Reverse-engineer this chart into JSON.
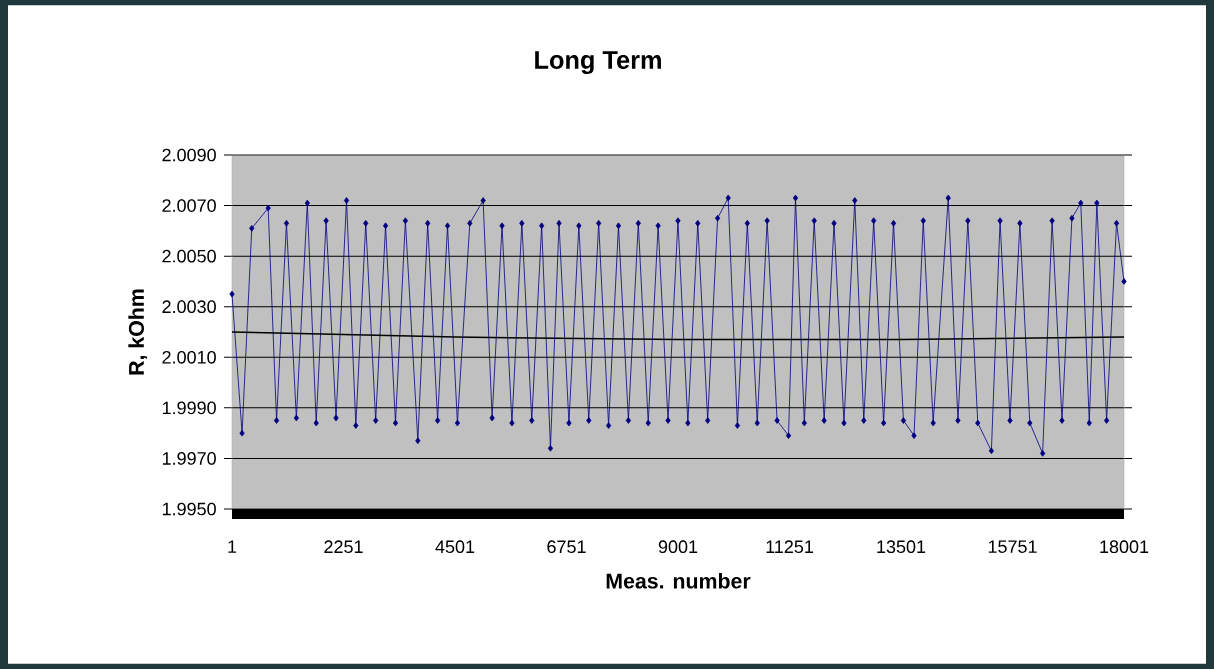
{
  "chart_data": {
    "type": "line",
    "title": "Long Term",
    "xlabel": "Meas. number",
    "ylabel": "R, kOhm",
    "xlim": [
      1,
      18001
    ],
    "xticks": [
      1,
      2251,
      4501,
      6751,
      9001,
      11251,
      13501,
      15751,
      18001
    ],
    "ylim": [
      1.995,
      2.009
    ],
    "yticks": [
      {
        "value": 1.995,
        "label": "1.9950"
      },
      {
        "value": 1.997,
        "label": "1.9970"
      },
      {
        "value": 1.999,
        "label": "1.9990"
      },
      {
        "value": 2.001,
        "label": "2.0010"
      },
      {
        "value": 2.003,
        "label": "2.0030"
      },
      {
        "value": 2.005,
        "label": "2.0050"
      },
      {
        "value": 2.007,
        "label": "2.0070"
      },
      {
        "value": 2.009,
        "label": "2.0090"
      }
    ],
    "grid": "y",
    "legend": false,
    "marker": "diamond",
    "line_style": "solid",
    "series": [
      {
        "color": "#000080",
        "x": [
          1,
          204,
          400,
          731,
          900,
          1100,
          1300,
          1521,
          1700,
          1900,
          2100,
          2312,
          2500,
          2700,
          2900,
          3100,
          3300,
          3500,
          3751,
          3950,
          4150,
          4350,
          4550,
          4800,
          5069,
          5250,
          5450,
          5650,
          5850,
          6050,
          6250,
          6427,
          6600,
          6800,
          7000,
          7200,
          7400,
          7600,
          7800,
          8000,
          8200,
          8400,
          8600,
          8800,
          9000,
          9200,
          9400,
          9600,
          9800,
          10014,
          10200,
          10400,
          10600,
          10800,
          11000,
          11231,
          11372,
          11550,
          11750,
          11950,
          12150,
          12350,
          12568,
          12750,
          12950,
          13150,
          13350,
          13550,
          13764,
          13950,
          14150,
          14454,
          14650,
          14850,
          15050,
          15325,
          15500,
          15700,
          15900,
          16100,
          16359,
          16550,
          16750,
          16950,
          17129,
          17300,
          17453,
          17650,
          17850,
          18001
        ],
        "values": [
          2.0035,
          1.998,
          2.0061,
          2.0069,
          1.9985,
          2.0063,
          1.9986,
          2.0071,
          1.9984,
          2.0064,
          1.9986,
          2.0072,
          1.9983,
          2.0063,
          1.9985,
          2.0062,
          1.9984,
          2.0064,
          1.9977,
          2.0063,
          1.9985,
          2.0062,
          1.9984,
          2.0063,
          2.0072,
          1.9986,
          2.0062,
          1.9984,
          2.0063,
          1.9985,
          2.0062,
          1.9974,
          2.0063,
          1.9984,
          2.0062,
          1.9985,
          2.0063,
          1.9983,
          2.0062,
          1.9985,
          2.0063,
          1.9984,
          2.0062,
          1.9985,
          2.0064,
          1.9984,
          2.0063,
          1.9985,
          2.0065,
          2.0073,
          1.9983,
          2.0063,
          1.9984,
          2.0064,
          1.9985,
          1.9979,
          2.0073,
          1.9984,
          2.0064,
          1.9985,
          2.0063,
          1.9984,
          2.0072,
          1.9985,
          2.0064,
          1.9984,
          2.0063,
          1.9985,
          1.9979,
          2.0064,
          1.9984,
          2.0073,
          1.9985,
          2.0064,
          1.9984,
          1.9973,
          2.0064,
          1.9985,
          2.0063,
          1.9984,
          1.9972,
          2.0064,
          1.9985,
          2.0065,
          2.0071,
          1.9984,
          2.0071,
          1.9985,
          2.0063,
          2.004
        ]
      },
      {
        "type": "line",
        "marker": "none",
        "color": "#000000",
        "x": [
          1,
          4501,
          9001,
          13501,
          18001
        ],
        "values": [
          2.002,
          2.0018,
          2.0017,
          2.0017,
          2.0018
        ]
      }
    ]
  }
}
